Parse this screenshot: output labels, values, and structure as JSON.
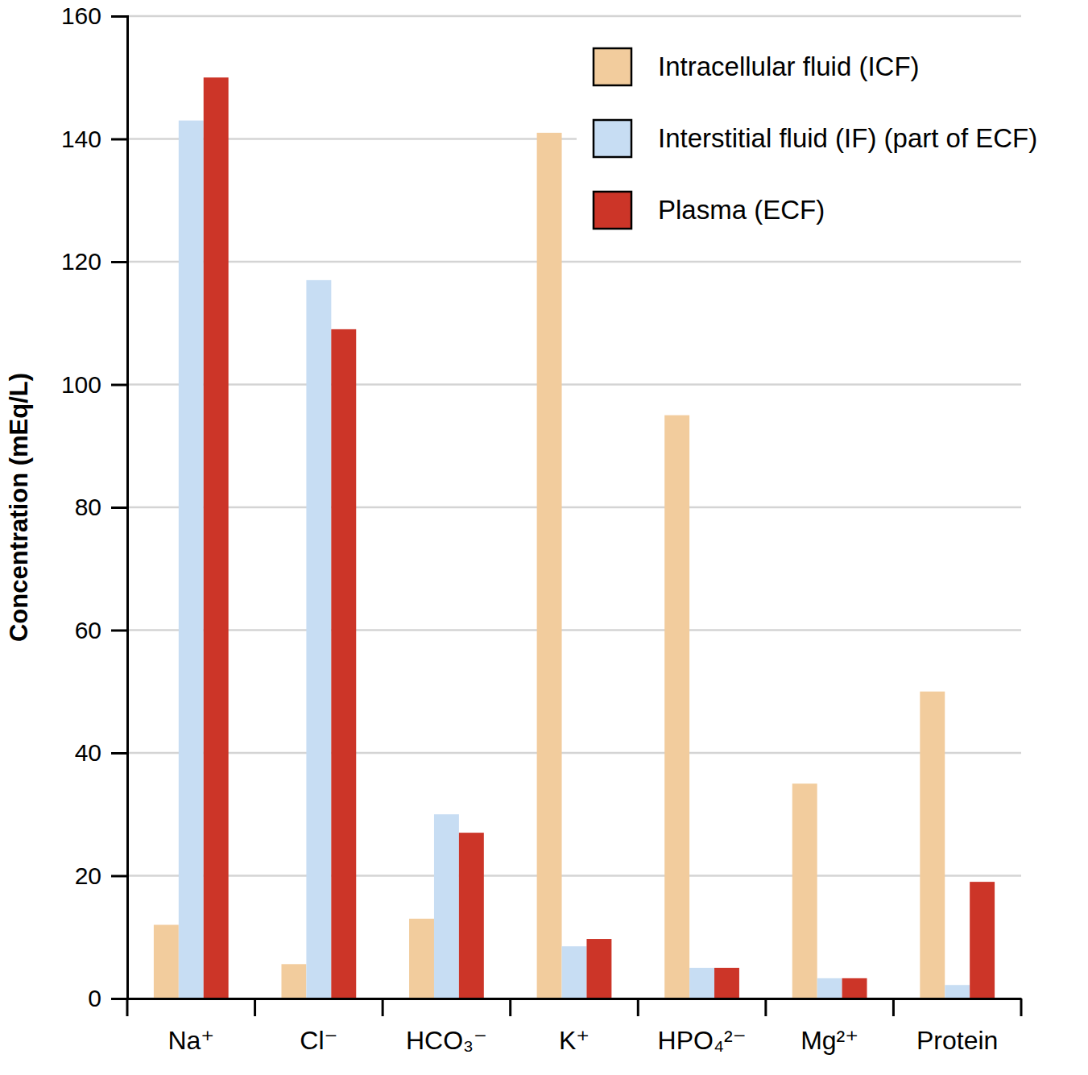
{
  "chart_data": {
    "type": "bar",
    "y_label": "Concentration (mEq/L)",
    "categories": [
      "Na⁺",
      "Cl⁻",
      "HCO₃⁻",
      "K⁺",
      "HPO₄²⁻",
      "Mg²⁺",
      "Protein"
    ],
    "series": [
      {
        "name": "Intracellular fluid (ICF)",
        "color": "#f2cc9d",
        "values": [
          12,
          5.6,
          13,
          141,
          95,
          35,
          50
        ]
      },
      {
        "name": "Interstitial fluid (IF) (part of ECF)",
        "color": "#c7ddf3",
        "values": [
          143,
          117,
          30,
          8.5,
          5,
          3.3,
          2.2
        ]
      },
      {
        "name": "Plasma (ECF)",
        "color": "#cc3528",
        "values": [
          150,
          109,
          27,
          9.7,
          5,
          3.3,
          19
        ]
      }
    ],
    "ylim": [
      0,
      160
    ],
    "yticks": [
      0,
      20,
      40,
      60,
      80,
      100,
      120,
      140,
      160
    ],
    "grid": true,
    "legend": "upper right"
  }
}
